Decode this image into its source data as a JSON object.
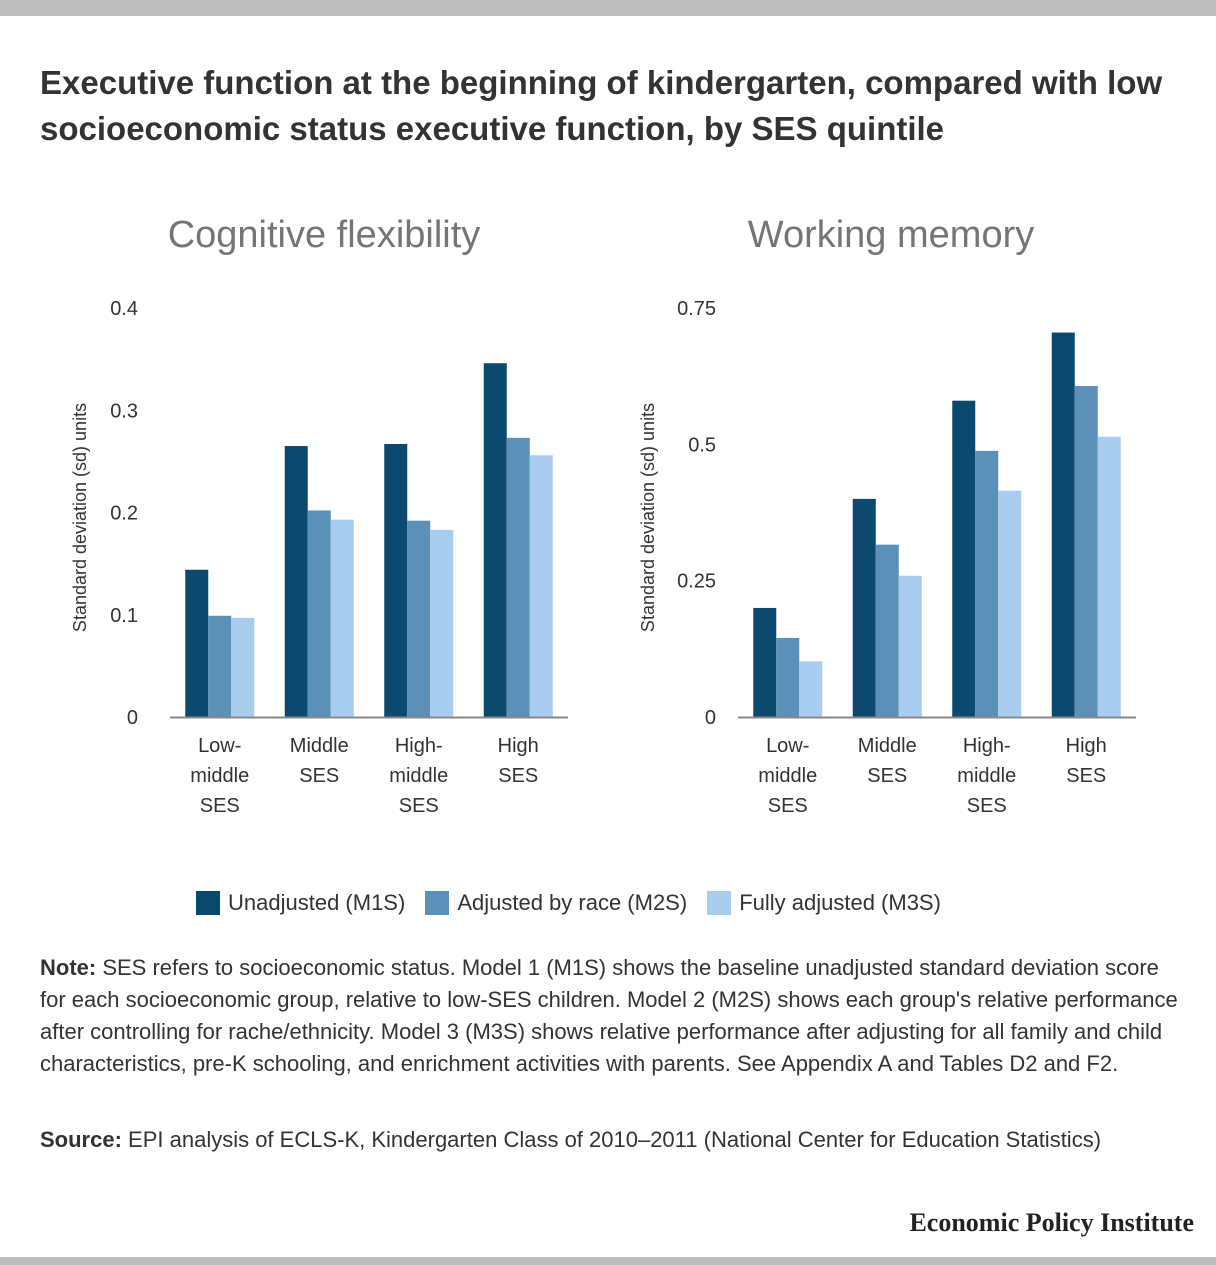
{
  "title": "Executive function at the beginning of kindergarten, compared with low socioeconomic status executive function, by SES quintile",
  "colors": {
    "unadjusted": "#0b4a6e",
    "adjusted_race": "#5b91b8",
    "fully_adjusted": "#a9cdee"
  },
  "legend": {
    "unadjusted": "Unadjusted (M1S)",
    "adjusted_race": "Adjusted by race (M2S)",
    "fully_adjusted": "Fully adjusted (M3S)"
  },
  "chart_data": [
    {
      "type": "bar",
      "title": "Cognitive flexibility",
      "ylabel": "Standard deviation (sd) units",
      "ylim": [
        0,
        0.4
      ],
      "yticks": [
        "0",
        "0.1",
        "0.2",
        "0.3",
        "0.4"
      ],
      "yticks_values": [
        0,
        0.1,
        0.2,
        0.3,
        0.4
      ],
      "categories": [
        [
          "Low-",
          "middle",
          "SES"
        ],
        [
          "Middle",
          "SES"
        ],
        [
          "High-",
          "middle",
          "SES"
        ],
        [
          "High",
          "SES"
        ]
      ],
      "series": [
        {
          "name": "Unadjusted (M1S)",
          "values": [
            0.144,
            0.265,
            0.267,
            0.346
          ]
        },
        {
          "name": "Adjusted by race (M2S)",
          "values": [
            0.099,
            0.202,
            0.192,
            0.273
          ]
        },
        {
          "name": "Fully adjusted (M3S)",
          "values": [
            0.097,
            0.193,
            0.183,
            0.256
          ]
        }
      ],
      "grid": false,
      "legend_position": "bottom"
    },
    {
      "type": "bar",
      "title": "Working memory",
      "ylabel": "Standard deviation (sd) units",
      "ylim": [
        0,
        0.75
      ],
      "yticks": [
        "0",
        "0.25",
        "0.5",
        "0.75"
      ],
      "yticks_values": [
        0,
        0.25,
        0.5,
        0.75
      ],
      "categories": [
        [
          "Low-",
          "middle",
          "SES"
        ],
        [
          "Middle",
          "SES"
        ],
        [
          "High-",
          "middle",
          "SES"
        ],
        [
          "High",
          "SES"
        ]
      ],
      "series": [
        {
          "name": "Unadjusted (M1S)",
          "values": [
            0.2,
            0.4,
            0.58,
            0.705
          ]
        },
        {
          "name": "Adjusted by race (M2S)",
          "values": [
            0.145,
            0.316,
            0.488,
            0.607
          ]
        },
        {
          "name": "Fully adjusted (M3S)",
          "values": [
            0.102,
            0.259,
            0.415,
            0.514
          ]
        }
      ],
      "grid": false,
      "legend_position": "bottom"
    }
  ],
  "note": {
    "lead": "Note:",
    "text": " SES refers to socioeconomic status. Model 1 (M1S) shows the baseline unadjusted standard deviation score for each socioeconomic group, relative to low-SES children. Model 2 (M2S) shows each group's relative performance after controlling for rache/ethnicity. Model 3 (M3S) shows relative performance after adjusting for all family and child characteristics, pre-K schooling, and enrichment activities with parents. See Appendix A and Tables D2 and F2."
  },
  "source": {
    "lead": "Source:",
    "text": " EPI analysis of ECLS-K, Kindergarten Class of 2010–2011 (National Center for Education Statistics)"
  },
  "brand": "Economic Policy Institute"
}
